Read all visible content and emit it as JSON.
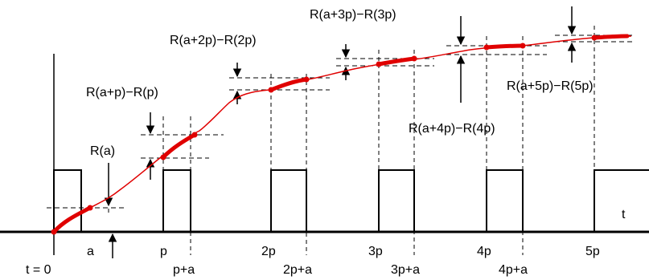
{
  "pulse_labels": {
    "t0": "t = 0",
    "a": "a",
    "p": "p",
    "p_a": "p+a",
    "two_p": "2p",
    "two_p_a": "2p+a",
    "three_p": "3p",
    "three_p_a": "3p+a",
    "four_p": "4p",
    "four_p_a": "4p+a",
    "five_p": "5p",
    "t_axis": "t"
  },
  "increment_labels": {
    "r_a": "R(a)",
    "r_ap": "R(a+p)−R(p)",
    "r_a2p": "R(a+2p)−R(2p)",
    "r_a3p": "R(a+3p)−R(3p)",
    "r_a4p": "R(a+4p)−R(4p)",
    "r_a5p": "R(a+5p)−R(5p)"
  },
  "colors": {
    "curve": "#e00000",
    "pulse": "#000000"
  }
}
